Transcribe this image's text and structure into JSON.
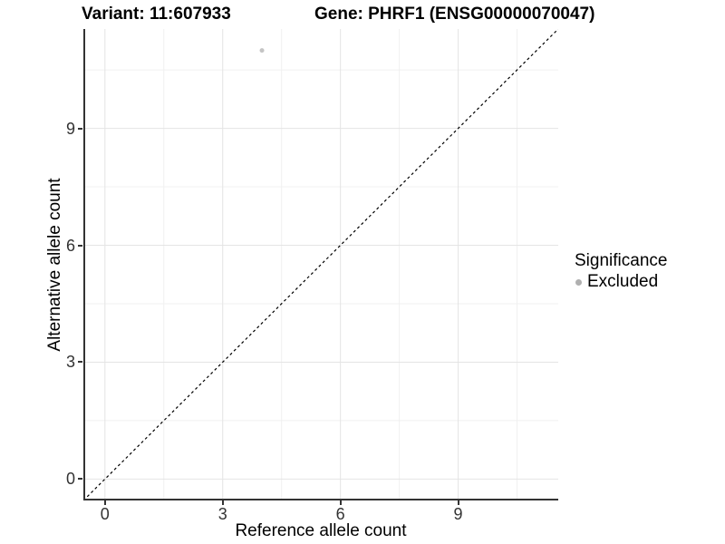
{
  "header": {
    "variant_title": "Variant: 11:607933",
    "gene_title": "Gene: PHRF1 (ENSG00000070047)"
  },
  "chart_data": {
    "type": "scatter",
    "title_left": "Variant: 11:607933",
    "title_right": "Gene: PHRF1 (ENSG00000070047)",
    "xlabel": "Reference allele count",
    "ylabel": "Alternative allele count",
    "xlim": [
      -0.55,
      11.55
    ],
    "ylim": [
      -0.55,
      11.55
    ],
    "x_ticks": [
      0,
      3,
      6,
      9
    ],
    "y_ticks": [
      0,
      3,
      6,
      9
    ],
    "x_tick_labels": [
      "0",
      "3",
      "6",
      "9"
    ],
    "y_tick_labels": [
      "0",
      "3",
      "6",
      "9"
    ],
    "x_minor_ticks": [
      1.5,
      4.5,
      7.5,
      10.5
    ],
    "y_minor_ticks": [
      1.5,
      4.5,
      7.5,
      10.5
    ],
    "grid": "major+minor",
    "reference_line": {
      "type": "identity y=x",
      "style": "dashed",
      "color": "#000000"
    },
    "series": [
      {
        "name": "Excluded",
        "color": "#c4c4c4",
        "points": [
          {
            "x": 4,
            "y": 11
          }
        ]
      }
    ],
    "legend": {
      "position": "right",
      "title": "Significance",
      "entries": [
        {
          "label": "Excluded",
          "color": "#b0b0b0"
        }
      ]
    }
  },
  "colors": {
    "background": "#ffffff",
    "axis_line": "#333333",
    "grid_major": "#e4e4e4",
    "grid_minor": "#f0f0f0",
    "tick_text": "#333333",
    "point": "#c4c4c4",
    "legend_dot": "#b0b0b0",
    "reference_line": "#000000"
  }
}
